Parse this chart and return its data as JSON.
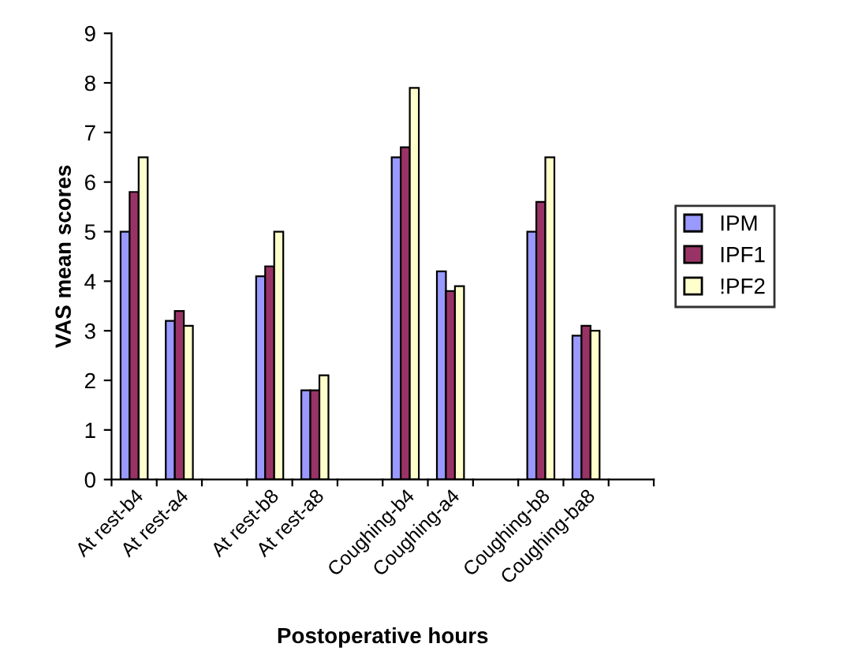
{
  "chart_data": {
    "type": "bar",
    "xlabel": "Postoperative hours",
    "ylabel": "VAS mean scores",
    "categories": [
      "At rest-b4",
      "At rest-a4",
      null,
      "At rest-b8",
      "At rest-a8",
      null,
      "Coughing-b4",
      "Coughing-a4",
      null,
      "Coughing-b8",
      "Coughing-ba8",
      null
    ],
    "series": [
      {
        "name": "IPM",
        "color": "#9999ff",
        "values": [
          5.0,
          3.2,
          null,
          4.1,
          1.8,
          null,
          6.5,
          4.2,
          null,
          5.0,
          2.9,
          null
        ]
      },
      {
        "name": "IPF1",
        "color": "#993366",
        "values": [
          5.8,
          3.4,
          null,
          4.3,
          1.8,
          null,
          6.7,
          3.8,
          null,
          5.6,
          3.1,
          null
        ]
      },
      {
        "name": "!PF2",
        "color": "#ffffcc",
        "values": [
          6.5,
          3.1,
          null,
          5.0,
          2.1,
          null,
          7.9,
          3.9,
          null,
          6.5,
          3.0,
          null
        ]
      }
    ],
    "ylim": [
      0,
      9
    ],
    "yticks": [
      0,
      1,
      2,
      3,
      4,
      5,
      6,
      7,
      8,
      9
    ],
    "grid": false,
    "legend": "right"
  }
}
